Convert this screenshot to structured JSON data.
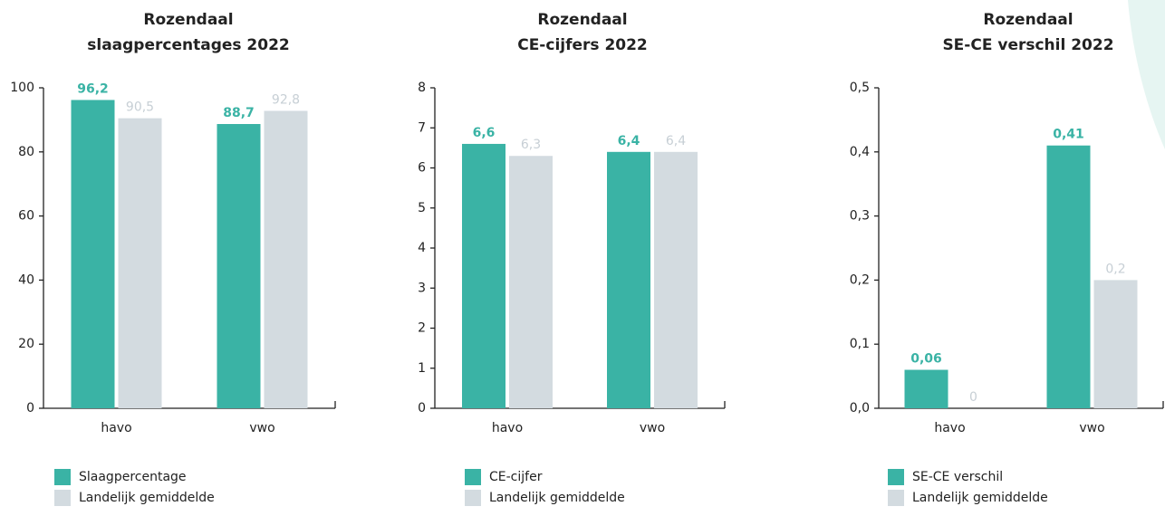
{
  "chart_data": [
    {
      "type": "bar",
      "title": [
        "Rozendaal",
        "slaagpercentages 2022"
      ],
      "categories": [
        "havo",
        "vwo"
      ],
      "series": [
        {
          "name": "Slaagpercentage",
          "color": "#3ab3a5",
          "values": [
            96.2,
            88.7
          ],
          "value_labels": [
            "96,2",
            "88,7"
          ]
        },
        {
          "name": "Landelijk gemiddelde",
          "color": "#d3dbe0",
          "values": [
            90.5,
            92.8
          ],
          "value_labels": [
            "90,5",
            "92,8"
          ]
        }
      ],
      "ylim": [
        0,
        100
      ],
      "yticks": [
        0,
        20,
        40,
        60,
        80,
        100
      ]
    },
    {
      "type": "bar",
      "title": [
        "Rozendaal",
        "CE-cijfers 2022"
      ],
      "categories": [
        "havo",
        "vwo"
      ],
      "series": [
        {
          "name": "CE-cijfer",
          "color": "#3ab3a5",
          "values": [
            6.6,
            6.4
          ],
          "value_labels": [
            "6,6",
            "6,4"
          ]
        },
        {
          "name": "Landelijk gemiddelde",
          "color": "#d3dbe0",
          "values": [
            6.3,
            6.4
          ],
          "value_labels": [
            "6,3",
            "6,4"
          ]
        }
      ],
      "ylim": [
        0,
        8
      ],
      "yticks": [
        0,
        1,
        2,
        3,
        4,
        5,
        6,
        7,
        8
      ]
    },
    {
      "type": "bar",
      "title": [
        "Rozendaal",
        "SE-CE verschil 2022"
      ],
      "categories": [
        "havo",
        "vwo"
      ],
      "series": [
        {
          "name": "SE-CE verschil",
          "color": "#3ab3a5",
          "values": [
            0.06,
            0.41
          ],
          "value_labels": [
            "0,06",
            "0,41"
          ]
        },
        {
          "name": "Landelijk gemiddelde",
          "color": "#d3dbe0",
          "values": [
            0,
            0.2
          ],
          "value_labels": [
            "0",
            "0,2"
          ]
        }
      ],
      "ylim": [
        0,
        0.5
      ],
      "yticks": [
        {
          "value": 0,
          "label": "0,0"
        },
        {
          "value": 0.1,
          "label": "0,1"
        },
        {
          "value": 0.2,
          "label": "0,2"
        },
        {
          "value": 0.3,
          "label": "0,3"
        },
        {
          "value": 0.4,
          "label": "0,4"
        },
        {
          "value": 0.5,
          "label": "0,5"
        }
      ]
    }
  ]
}
